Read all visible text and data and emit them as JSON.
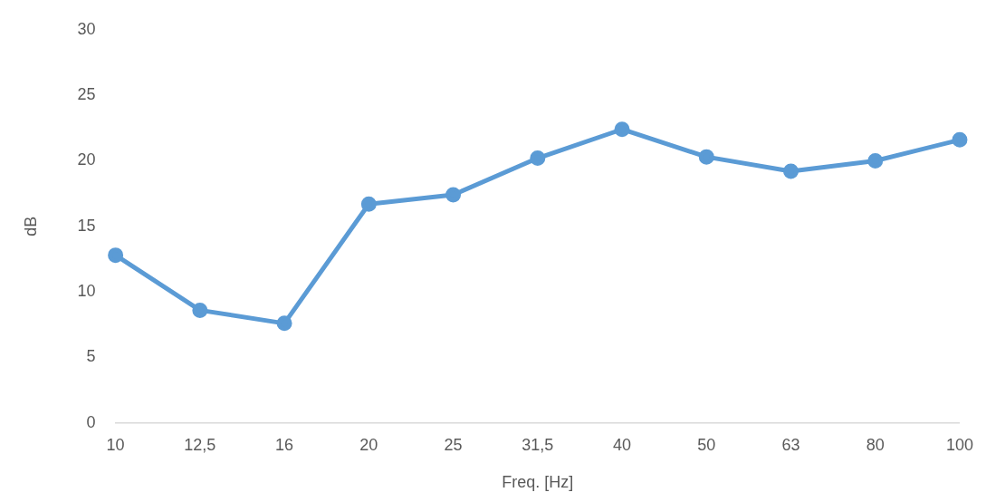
{
  "chart_data": {
    "type": "line",
    "xlabel": "Freq. [Hz]",
    "ylabel": "dB",
    "categories": [
      "10",
      "12,5",
      "16",
      "20",
      "25",
      "31,5",
      "40",
      "50",
      "63",
      "80",
      "100"
    ],
    "series": [
      {
        "color": "#5b9bd5",
        "values": [
          12.8,
          8.6,
          7.6,
          16.7,
          17.4,
          20.2,
          22.4,
          20.3,
          19.2,
          20.0,
          21.6
        ]
      }
    ],
    "ylim": [
      0,
      30
    ],
    "yticks": [
      0,
      5,
      10,
      15,
      20,
      25,
      30
    ],
    "grid": false,
    "legend": false,
    "marker": "circle",
    "line_style": "solid"
  }
}
